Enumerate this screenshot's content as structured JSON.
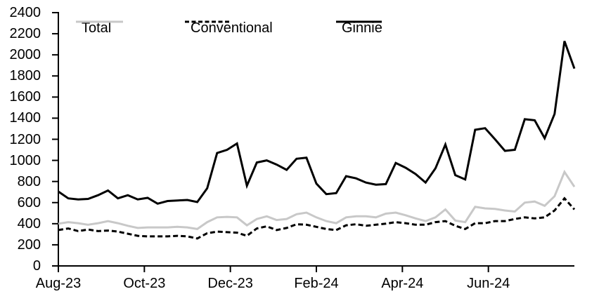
{
  "chart_data": {
    "type": "line",
    "title": "",
    "xlabel": "",
    "ylabel": "",
    "ylim": [
      0,
      2400
    ],
    "y_tick_step": 200,
    "grid": false,
    "legend_position": "top",
    "x_unit": "weekly",
    "x_span_months": 12,
    "x_tick_labels": [
      "Aug-23",
      "Oct-23",
      "Dec-23",
      "Feb-24",
      "Apr-24",
      "Jun-24"
    ],
    "axis_color": "#000000",
    "series": [
      {
        "name": "Total",
        "color": "#c8c8c8",
        "style": "solid",
        "values": [
          400,
          415,
          405,
          390,
          405,
          425,
          405,
          380,
          360,
          365,
          365,
          365,
          370,
          365,
          350,
          415,
          460,
          465,
          460,
          385,
          445,
          470,
          435,
          445,
          490,
          505,
          460,
          425,
          405,
          460,
          470,
          470,
          460,
          495,
          505,
          480,
          450,
          425,
          460,
          535,
          430,
          415,
          560,
          545,
          540,
          525,
          515,
          600,
          610,
          570,
          660,
          890,
          750
        ]
      },
      {
        "name": "Conventional",
        "color": "#000000",
        "style": "dashed",
        "values": [
          340,
          355,
          330,
          345,
          330,
          335,
          325,
          305,
          285,
          280,
          280,
          280,
          285,
          280,
          260,
          310,
          325,
          320,
          315,
          285,
          355,
          375,
          340,
          360,
          395,
          390,
          370,
          350,
          340,
          385,
          395,
          380,
          390,
          400,
          415,
          405,
          390,
          390,
          415,
          425,
          380,
          350,
          405,
          405,
          425,
          425,
          445,
          460,
          450,
          460,
          525,
          640,
          535
        ]
      },
      {
        "name": "Ginnie",
        "color": "#000000",
        "style": "solid",
        "values": [
          705,
          640,
          630,
          635,
          670,
          715,
          640,
          670,
          630,
          645,
          590,
          615,
          620,
          625,
          605,
          735,
          1070,
          1100,
          1160,
          760,
          980,
          1000,
          960,
          910,
          1015,
          1025,
          780,
          680,
          690,
          850,
          830,
          790,
          770,
          775,
          975,
          930,
          870,
          790,
          925,
          1150,
          860,
          820,
          1290,
          1305,
          1200,
          1090,
          1100,
          1390,
          1380,
          1210,
          1440,
          2130,
          1870
        ]
      }
    ]
  }
}
